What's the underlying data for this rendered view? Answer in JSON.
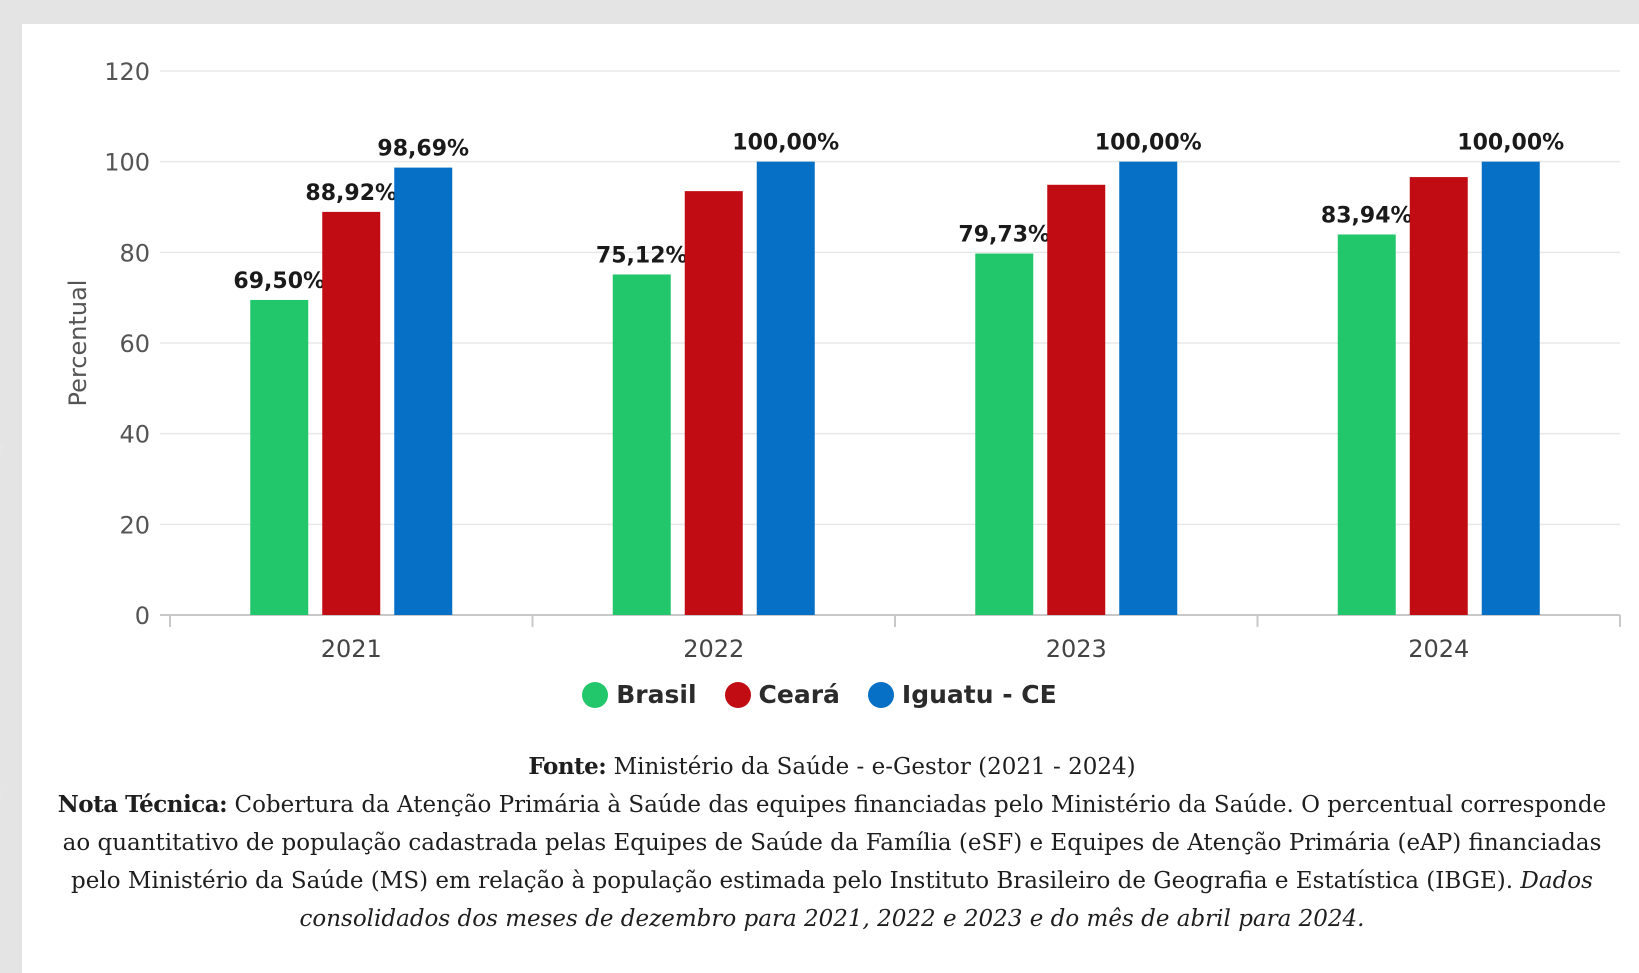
{
  "chart_data": {
    "type": "bar",
    "categories": [
      "2021",
      "2022",
      "2023",
      "2024"
    ],
    "series": [
      {
        "name": "Brasil",
        "color": "#22c76b",
        "values": [
          69.5,
          75.12,
          79.73,
          83.94
        ],
        "labels": [
          "69,50%",
          "75,12%",
          "79,73%",
          "83,94%"
        ]
      },
      {
        "name": "Ceará",
        "color": "#c20c14",
        "values": [
          88.92,
          93.5,
          94.9,
          96.6
        ],
        "labels": [
          "88,92%",
          "",
          "",
          ""
        ]
      },
      {
        "name": "Iguatu - CE",
        "color": "#0570c5",
        "values": [
          98.69,
          100.0,
          100.0,
          100.0
        ],
        "labels": [
          "98,69%",
          "100,00%",
          "100,00%",
          "100,00%"
        ]
      }
    ],
    "ylabel": "Percentual",
    "xlabel": "",
    "ylim": [
      0,
      120
    ],
    "yticks": [
      0,
      20,
      40,
      60,
      80,
      100,
      120
    ],
    "grid": true,
    "legend_position": "bottom-center"
  },
  "footer": {
    "source_label": "Fonte:",
    "source_text": " Ministério da Saúde - e-Gestor (2021 - 2024)",
    "note_label": "Nota Técnica:",
    "note_text": " Cobertura da Atenção Primária à Saúde das equipes financiadas pelo Ministério da Saúde. O percentual corresponde ao quantitativo de população cadastrada pelas Equipes de Saúde da Família (eSF) e Equipes de Atenção Primária (eAP) financiadas pelo Ministério da Saúde (MS) em relação à população estimada pelo Instituto Brasileiro de Geografia e Estatística (IBGE).",
    "note_italic": " Dados consolidados dos meses de dezembro para 2021, 2022 e 2023 e do mês de abril para 2024."
  }
}
